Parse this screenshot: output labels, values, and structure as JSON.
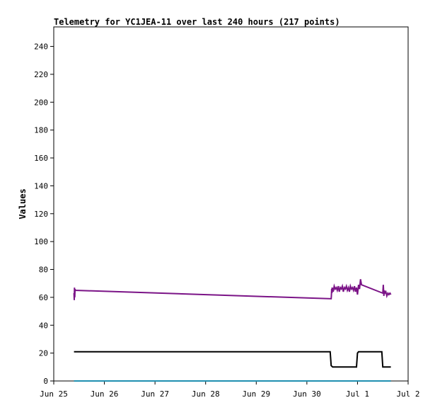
{
  "chart_data": {
    "type": "line",
    "title": "Telemetry for YC1JEA-11 over last 240 hours (217 points)",
    "xlabel": "",
    "ylabel": "Values",
    "ylim": [
      0,
      254
    ],
    "xlim": [
      "Jun 25 00:00",
      "Jul 2 00:00"
    ],
    "x_ticks": [
      "Jun 25",
      "Jun 26",
      "Jun 27",
      "Jun 28",
      "Jun 29",
      "Jun 30",
      "Jul 1",
      "Jul 2"
    ],
    "y_ticks": [
      0,
      20,
      40,
      60,
      80,
      100,
      120,
      140,
      160,
      180,
      200,
      220,
      240
    ],
    "grid": false,
    "legend": "none",
    "series": [
      {
        "color": "#7b1487",
        "points": [
          [
            "Jun 25 09:36",
            63
          ],
          [
            "Jun 25 09:43",
            58
          ],
          [
            "Jun 25 09:50",
            67
          ],
          [
            "Jun 25 09:58",
            60
          ],
          [
            "Jun 25 10:05",
            66
          ],
          [
            "Jun 25 10:12",
            65
          ],
          [
            "Jun 30 11:31",
            59
          ],
          [
            "Jun 30 11:38",
            61
          ],
          [
            "Jun 30 11:46",
            66
          ],
          [
            "Jun 30 11:53",
            63
          ],
          [
            "Jun 30 12:00",
            67
          ],
          [
            "Jun 30 12:29",
            64
          ],
          [
            "Jun 30 12:58",
            68
          ],
          [
            "Jun 30 13:26",
            66
          ],
          [
            "Jun 30 13:55",
            67
          ],
          [
            "Jun 30 14:24",
            65
          ],
          [
            "Jun 30 14:53",
            68
          ],
          [
            "Jun 30 15:22",
            64
          ],
          [
            "Jun 30 15:50",
            67
          ],
          [
            "Jun 30 16:19",
            66
          ],
          [
            "Jun 30 16:48",
            68
          ],
          [
            "Jun 30 17:17",
            64
          ],
          [
            "Jun 30 17:46",
            67
          ],
          [
            "Jun 30 18:14",
            66
          ],
          [
            "Jun 30 18:43",
            68
          ],
          [
            "Jun 30 19:12",
            65
          ],
          [
            "Jun 30 19:41",
            67
          ],
          [
            "Jun 30 20:10",
            64
          ],
          [
            "Jun 30 20:38",
            68
          ],
          [
            "Jun 30 21:07",
            66
          ],
          [
            "Jun 30 21:36",
            67
          ],
          [
            "Jun 30 22:05",
            65
          ],
          [
            "Jun 30 22:34",
            68
          ],
          [
            "Jun 30 23:02",
            64
          ],
          [
            "Jun 30 23:31",
            67
          ],
          [
            "Jul 1 00:00",
            62
          ],
          [
            "Jul 1 00:29",
            69
          ],
          [
            "Jul 1 00:58",
            66
          ],
          [
            "Jul 1 01:26",
            73
          ],
          [
            "Jul 1 01:55",
            69
          ],
          [
            "Jul 1 12:00",
            63
          ],
          [
            "Jul 1 12:14",
            69
          ],
          [
            "Jul 1 12:29",
            61
          ],
          [
            "Jul 1 12:43",
            65
          ],
          [
            "Jul 1 12:58",
            63
          ],
          [
            "Jul 1 13:26",
            64
          ],
          [
            "Jul 1 13:55",
            61
          ],
          [
            "Jul 1 14:24",
            63
          ],
          [
            "Jul 1 14:53",
            62
          ],
          [
            "Jul 1 15:22",
            63
          ],
          [
            "Jul 1 15:50",
            62
          ]
        ]
      },
      {
        "color": "#000000",
        "points": [
          [
            "Jun 25 09:36",
            21
          ],
          [
            "Jun 30 11:02",
            21
          ],
          [
            "Jun 30 11:31",
            11
          ],
          [
            "Jun 30 12:14",
            10
          ],
          [
            "Jun 30 23:31",
            10
          ],
          [
            "Jul 1 00:00",
            20
          ],
          [
            "Jul 1 00:29",
            21
          ],
          [
            "Jul 1 11:31",
            21
          ],
          [
            "Jul 1 12:00",
            10
          ],
          [
            "Jul 1 15:50",
            10
          ]
        ]
      },
      {
        "color": "#1f8fb0",
        "points": [
          [
            "Jun 25 09:36",
            0
          ],
          [
            "Jun 30 11:02",
            0
          ],
          [
            "Jul 1 15:50",
            0
          ]
        ]
      }
    ]
  }
}
